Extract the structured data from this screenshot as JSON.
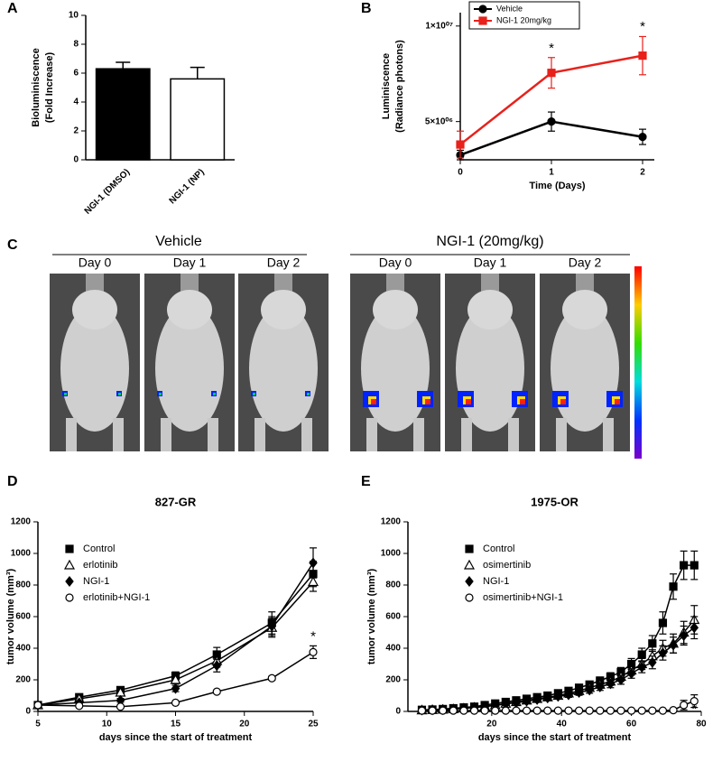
{
  "panel_labels": [
    "A",
    "B",
    "C",
    "D",
    "E"
  ],
  "imaging": {
    "groups": [
      {
        "title": "Vehicle",
        "days": [
          "Day 0",
          "Day 1",
          "Day 2"
        ]
      },
      {
        "title": "NGI-1 (20mg/kg)",
        "days": [
          "Day 0",
          "Day 1",
          "Day 2"
        ]
      }
    ]
  },
  "chart_data": [
    {
      "type": "bar",
      "ylabel": [
        "Bioluminiscence",
        "(Fold Increase)"
      ],
      "categories": [
        "NGI-1 (DMSO)",
        "NGI-1 (NP)"
      ],
      "values": [
        6.3,
        5.6
      ],
      "errors": [
        0.45,
        0.8
      ],
      "colors": [
        "#000000",
        "#ffffff"
      ],
      "ylim": [
        0,
        10
      ],
      "yticks": [
        0,
        2,
        4,
        6,
        8,
        10
      ]
    },
    {
      "type": "line",
      "xlabel": "Time (Days)",
      "ylabel": [
        "Luminiscence",
        "(Radiance photons)"
      ],
      "legend": "upper left",
      "legend_box": true,
      "x": [
        0,
        1,
        2
      ],
      "xlim": [
        0,
        2
      ],
      "xticks": [
        0,
        1,
        2
      ],
      "ylim": [
        3000000,
        10700000
      ],
      "yticks": [
        {
          "value": 5000000,
          "label": "5×10⁰⁶"
        },
        {
          "value": 10000000,
          "label": "1×10⁰⁷"
        }
      ],
      "series": [
        {
          "name": "Vehicle",
          "color": "#000000",
          "marker": "circle",
          "values": [
            3250000,
            5000000,
            4200000
          ],
          "errors": [
            250000,
            500000,
            400000
          ]
        },
        {
          "name": "NGI-1 20mg/kg",
          "color": "#e8211b",
          "marker": "square",
          "values": [
            3800000,
            7550000,
            8450000
          ],
          "errors": [
            700000,
            800000,
            1000000
          ]
        }
      ],
      "annotations": [
        {
          "text": "*",
          "x": 1,
          "y": 8800000
        },
        {
          "text": "*",
          "x": 2,
          "y": 9950000
        }
      ]
    },
    {
      "type": "line",
      "title": "827-GR",
      "xlabel": "days since the start of treatment",
      "ylabel": [
        "tumor volume (mm³)"
      ],
      "legend": "upper left",
      "legend_box": false,
      "x": [
        5,
        8,
        11,
        15,
        18,
        22,
        25
      ],
      "xlim": [
        5,
        25
      ],
      "xticks": [
        5,
        10,
        15,
        20,
        25
      ],
      "ylim": [
        0,
        1200
      ],
      "yticks": [
        0,
        200,
        400,
        600,
        800,
        1000,
        1200
      ],
      "series": [
        {
          "name": "Control",
          "color": "#000000",
          "marker": "square",
          "values": [
            40,
            90,
            135,
            225,
            360,
            560,
            870
          ],
          "errors": [
            10,
            15,
            15,
            25,
            45,
            70,
            80
          ]
        },
        {
          "name": "erlotinib",
          "color": "#000000",
          "marker": "open-triangle",
          "values": [
            40,
            80,
            120,
            200,
            320,
            530,
            820
          ],
          "errors": [
            10,
            12,
            15,
            25,
            40,
            60,
            60
          ]
        },
        {
          "name": "NGI-1",
          "color": "#000000",
          "marker": "diamond",
          "values": [
            40,
            55,
            70,
            145,
            290,
            540,
            940
          ],
          "errors": [
            10,
            10,
            12,
            20,
            40,
            60,
            95
          ]
        },
        {
          "name": "erlotinib+NGI-1",
          "color": "#000000",
          "marker": "open-circle",
          "values": [
            40,
            35,
            30,
            55,
            125,
            210,
            375
          ],
          "errors": [
            5,
            5,
            5,
            8,
            10,
            12,
            40
          ]
        }
      ],
      "annotations": [
        {
          "text": "*",
          "x": 25,
          "y": 470
        }
      ]
    },
    {
      "type": "line",
      "title": "1975-OR",
      "xlabel": "days since the start of treatment",
      "ylabel": [
        "tumor volume (mm³)"
      ],
      "legend": "upper left",
      "legend_box": false,
      "x": [
        0,
        3,
        6,
        9,
        12,
        15,
        18,
        21,
        24,
        27,
        30,
        33,
        36,
        39,
        42,
        45,
        48,
        51,
        54,
        57,
        60,
        63,
        66,
        69,
        72,
        75,
        78
      ],
      "xlim": [
        -4,
        80
      ],
      "xticks": [
        20,
        40,
        60,
        80
      ],
      "ylim": [
        0,
        1200
      ],
      "yticks": [
        0,
        200,
        400,
        600,
        800,
        1000,
        1200
      ],
      "series": [
        {
          "name": "Control",
          "color": "#000000",
          "marker": "square",
          "values": [
            10,
            12,
            15,
            20,
            25,
            30,
            40,
            50,
            60,
            70,
            80,
            90,
            100,
            115,
            130,
            150,
            170,
            195,
            220,
            250,
            300,
            360,
            430,
            560,
            790,
            925,
            925
          ],
          "errors": [
            3,
            3,
            4,
            5,
            5,
            6,
            8,
            8,
            10,
            10,
            12,
            12,
            14,
            15,
            16,
            18,
            20,
            22,
            25,
            28,
            35,
            40,
            50,
            70,
            80,
            90,
            90
          ]
        },
        {
          "name": "osimertinib",
          "color": "#000000",
          "marker": "open-triangle",
          "values": [
            8,
            10,
            12,
            15,
            20,
            25,
            32,
            40,
            50,
            60,
            70,
            80,
            90,
            100,
            115,
            130,
            150,
            170,
            190,
            220,
            260,
            300,
            350,
            400,
            430,
            500,
            580
          ],
          "errors": [
            3,
            3,
            4,
            5,
            5,
            6,
            8,
            8,
            10,
            10,
            12,
            12,
            14,
            15,
            16,
            18,
            20,
            22,
            25,
            28,
            30,
            35,
            40,
            50,
            60,
            70,
            90
          ]
        },
        {
          "name": "NGI-1",
          "color": "#000000",
          "marker": "diamond",
          "values": [
            8,
            10,
            12,
            15,
            20,
            25,
            30,
            38,
            48,
            55,
            65,
            75,
            85,
            95,
            105,
            120,
            135,
            155,
            175,
            200,
            240,
            280,
            310,
            370,
            420,
            480,
            530
          ],
          "errors": [
            3,
            3,
            4,
            5,
            5,
            6,
            8,
            8,
            10,
            10,
            12,
            12,
            14,
            15,
            16,
            18,
            20,
            22,
            25,
            28,
            30,
            35,
            40,
            45,
            50,
            60,
            70
          ]
        },
        {
          "name": "osimertinib+NGI-1",
          "color": "#000000",
          "marker": "open-circle",
          "values": [
            5,
            5,
            5,
            5,
            5,
            5,
            5,
            5,
            5,
            5,
            5,
            5,
            5,
            5,
            5,
            5,
            5,
            5,
            5,
            5,
            5,
            5,
            5,
            5,
            8,
            40,
            65
          ],
          "errors": [
            2,
            2,
            2,
            2,
            2,
            2,
            2,
            2,
            2,
            2,
            2,
            2,
            2,
            2,
            2,
            2,
            2,
            2,
            2,
            2,
            2,
            2,
            2,
            2,
            5,
            30,
            40
          ]
        }
      ],
      "annotations": [
        {
          "text": "*",
          "x": 78,
          "y": 10
        }
      ]
    }
  ]
}
